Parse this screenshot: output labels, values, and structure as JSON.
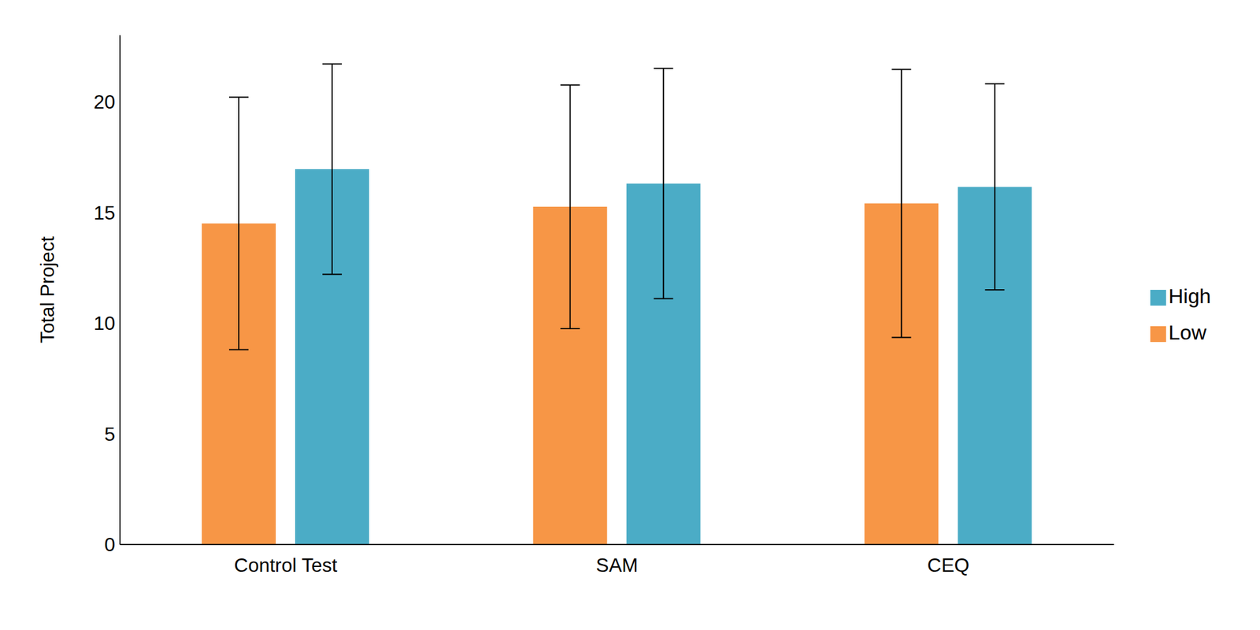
{
  "chart_data": {
    "type": "bar",
    "y_label": "Total Project",
    "categories": [
      "Control Test",
      "SAM",
      "CEQ"
    ],
    "series": [
      {
        "name": "Low",
        "color": "#f79646",
        "values": [
          14.5,
          15.25,
          15.4
        ],
        "errors": [
          5.7,
          5.5,
          6.05
        ]
      },
      {
        "name": "High",
        "color": "#4bacc6",
        "values": [
          16.95,
          16.3,
          16.15
        ],
        "errors": [
          4.75,
          5.2,
          4.65
        ]
      }
    ],
    "ylim": [
      0,
      23
    ],
    "yticks": [
      0,
      5,
      10,
      15,
      20
    ],
    "grid": false,
    "legend": "right"
  }
}
